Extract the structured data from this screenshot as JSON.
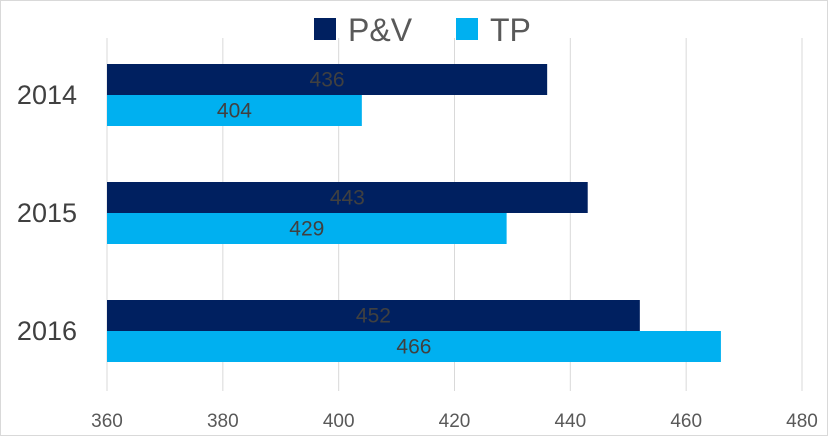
{
  "chart_data": {
    "type": "bar",
    "orientation": "horizontal",
    "categories": [
      "2014",
      "2015",
      "2016"
    ],
    "series": [
      {
        "name": "P&V",
        "values": [
          436,
          443,
          452
        ],
        "color": "#002060"
      },
      {
        "name": "TP",
        "values": [
          404,
          429,
          466
        ],
        "color": "#00B0F0"
      }
    ],
    "xlim": [
      360,
      480
    ],
    "xticks": [
      "360",
      "380",
      "400",
      "420",
      "440",
      "460",
      "480"
    ],
    "grid": true,
    "legend_position": "top",
    "data_labels": true,
    "label_colors": {
      "P&V": "#404040",
      "TP": "#404040"
    },
    "title": "",
    "xlabel": "",
    "ylabel": ""
  }
}
